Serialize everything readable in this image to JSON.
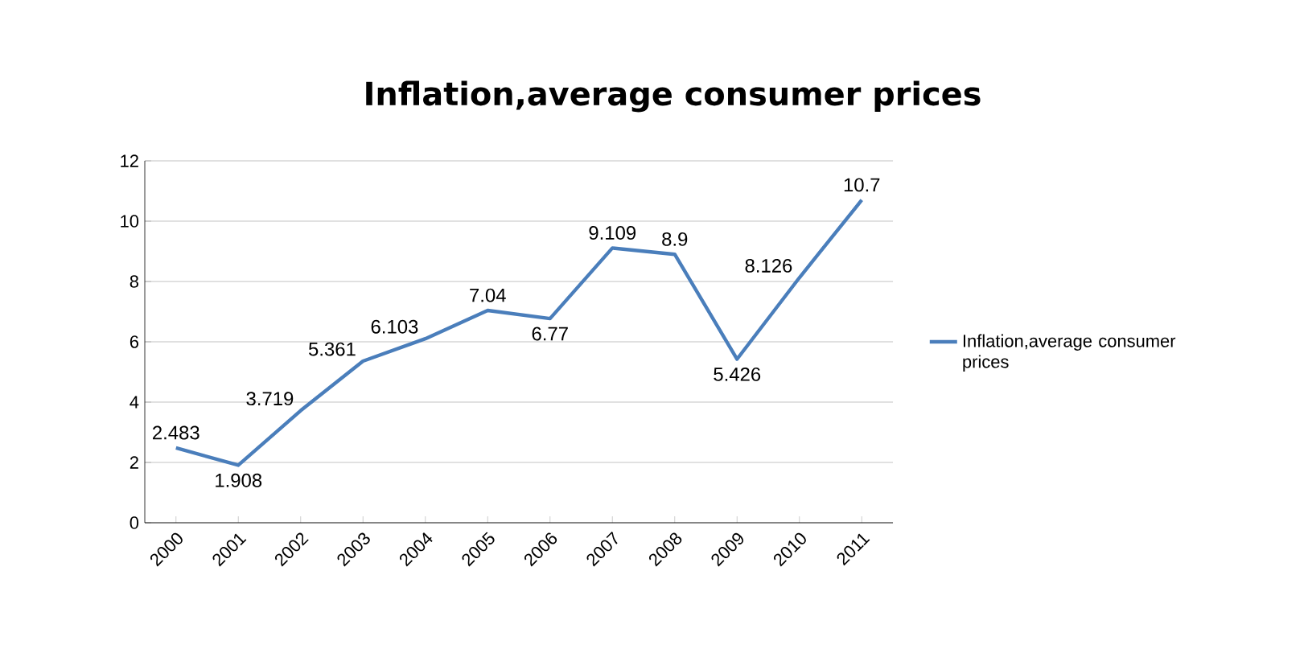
{
  "chart_data": {
    "type": "line",
    "title": "Inflation,average consumer prices",
    "categories": [
      "2000",
      "2001",
      "2002",
      "2003",
      "2004",
      "2005",
      "2006",
      "2007",
      "2008",
      "2009",
      "2010",
      "2011"
    ],
    "series": [
      {
        "name": "Inflation,average consumer prices",
        "color": "#4a7ebb",
        "values": [
          2.483,
          1.908,
          3.719,
          5.361,
          6.103,
          7.04,
          6.77,
          9.109,
          8.9,
          5.426,
          8.126,
          10.7
        ]
      }
    ],
    "ylim": [
      0,
      12
    ],
    "yticks": [
      0,
      2,
      4,
      6,
      8,
      10,
      12
    ],
    "grid": "y",
    "legend": "right",
    "marker": "none",
    "line_style": "solid",
    "data_labels": true
  }
}
